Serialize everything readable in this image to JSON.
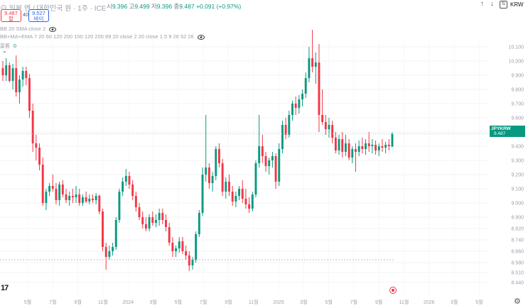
{
  "header": {
    "title": "일본 엔 / 대한민국 원 · 1주 · ICE",
    "open_label": "시",
    "open": "9.396",
    "high_label": "고",
    "high": "9.499",
    "low_label": "저",
    "low": "9.396",
    "close_label": "종",
    "close": "9.487",
    "change": "+0.091 (+0.97%)"
  },
  "trade": {
    "sell_price": "9.487",
    "sell_label": "팔",
    "spread": "40",
    "buy_price": "9.527",
    "buy_label": "바이"
  },
  "toolbar": {
    "currency": "KRW"
  },
  "indicators": {
    "line1": "BB 20 SMA close 2",
    "line2": "BB+MA+EMA 7 20 60 120 200 150 120 200 89 20 close 2 20 close 1.5 9 26 52 26",
    "line3_label": "볼륨",
    "line3_value": "0"
  },
  "price_tag": {
    "symbol": "JPYKRW",
    "price": "9.487",
    "countdown": "2d 19h"
  },
  "logo": "17",
  "chart_data": {
    "type": "candlestick",
    "title": "일본 엔 / 대한민국 원 · 1주 · ICE",
    "ylim": [
      8.42,
      10.18
    ],
    "y_ticks": [
      "10.100",
      "10.000",
      "9.900",
      "9.800",
      "9.700",
      "9.600",
      "9.500",
      "9.400",
      "9.300",
      "9.200",
      "9.100",
      "9.000",
      "8.900",
      "8.820",
      "8.740",
      "8.660",
      "8.580",
      "8.510",
      "8.440"
    ],
    "x_ticks": [
      "5월",
      "7월",
      "9월",
      "11월",
      "2024",
      "3월",
      "5월",
      "7월",
      "9월",
      "11월",
      "2025",
      "3월",
      "5월",
      "7월",
      "9월",
      "11월",
      "2026",
      "3월",
      "5월"
    ],
    "colors": {
      "up": "#089981",
      "down": "#f23645",
      "reference": "#f7a9b0",
      "current": "#9ed1c8"
    },
    "reference_price": 8.6,
    "current_price": 9.487,
    "candles": [
      [
        9.95,
        10.0,
        9.86,
        9.9
      ],
      [
        9.9,
        10.02,
        9.86,
        9.97
      ],
      [
        9.97,
        9.99,
        9.85,
        9.86
      ],
      [
        9.86,
        9.98,
        9.8,
        9.95
      ],
      [
        9.95,
        10.04,
        9.75,
        9.78
      ],
      [
        9.78,
        9.9,
        9.7,
        9.87
      ],
      [
        9.87,
        9.96,
        9.82,
        9.93
      ],
      [
        9.93,
        9.96,
        9.83,
        9.88
      ],
      [
        9.88,
        9.91,
        9.6,
        9.65
      ],
      [
        9.65,
        9.7,
        9.36,
        9.42
      ],
      [
        9.42,
        9.48,
        9.3,
        9.39
      ],
      [
        9.39,
        9.42,
        9.23,
        9.27
      ],
      [
        9.27,
        9.32,
        8.98,
        9.0
      ],
      [
        9.0,
        9.1,
        8.95,
        9.08
      ],
      [
        9.08,
        9.14,
        9.05,
        9.12
      ],
      [
        9.12,
        9.2,
        9.08,
        9.1
      ],
      [
        9.1,
        9.14,
        8.99,
        9.02
      ],
      [
        9.02,
        9.15,
        8.98,
        9.13
      ],
      [
        9.13,
        9.16,
        9.04,
        9.06
      ],
      [
        9.06,
        9.1,
        9.0,
        9.02
      ],
      [
        9.02,
        9.08,
        8.98,
        9.05
      ],
      [
        9.05,
        9.1,
        9.0,
        9.04
      ],
      [
        9.04,
        9.12,
        9.0,
        9.06
      ],
      [
        9.06,
        9.1,
        8.98,
        9.0
      ],
      [
        9.0,
        9.06,
        8.98,
        9.04
      ],
      [
        9.04,
        9.08,
        9.0,
        9.01
      ],
      [
        9.01,
        9.06,
        8.99,
        9.03
      ],
      [
        9.03,
        9.06,
        9.0,
        9.02
      ],
      [
        9.02,
        9.07,
        8.99,
        9.05
      ],
      [
        9.05,
        9.06,
        8.92,
        8.94
      ],
      [
        8.94,
        8.96,
        8.66,
        8.69
      ],
      [
        8.69,
        8.72,
        8.53,
        8.62
      ],
      [
        8.62,
        8.7,
        8.6,
        8.66
      ],
      [
        8.66,
        8.72,
        8.63,
        8.69
      ],
      [
        8.69,
        8.9,
        8.67,
        8.88
      ],
      [
        8.88,
        9.1,
        8.86,
        9.08
      ],
      [
        9.08,
        9.18,
        9.05,
        9.15
      ],
      [
        9.15,
        9.24,
        9.12,
        9.19
      ],
      [
        9.19,
        9.22,
        9.1,
        9.13
      ],
      [
        9.13,
        9.16,
        9.02,
        9.05
      ],
      [
        9.05,
        9.08,
        8.94,
        8.97
      ],
      [
        8.97,
        9.0,
        8.88,
        8.9
      ],
      [
        8.9,
        8.94,
        8.82,
        8.85
      ],
      [
        8.85,
        8.9,
        8.8,
        8.82
      ],
      [
        8.82,
        8.92,
        8.8,
        8.9
      ],
      [
        8.9,
        8.94,
        8.84,
        8.86
      ],
      [
        8.86,
        8.92,
        8.83,
        8.88
      ],
      [
        8.88,
        8.96,
        8.84,
        8.93
      ],
      [
        8.93,
        8.96,
        8.85,
        8.88
      ],
      [
        8.88,
        8.92,
        8.8,
        8.83
      ],
      [
        8.83,
        8.86,
        8.7,
        8.72
      ],
      [
        8.72,
        8.76,
        8.62,
        8.66
      ],
      [
        8.66,
        8.7,
        8.62,
        8.68
      ],
      [
        8.68,
        8.76,
        8.65,
        8.73
      ],
      [
        8.73,
        8.76,
        8.64,
        8.66
      ],
      [
        8.66,
        8.7,
        8.6,
        8.63
      ],
      [
        8.63,
        8.66,
        8.52,
        8.56
      ],
      [
        8.56,
        8.62,
        8.53,
        8.6
      ],
      [
        8.6,
        8.8,
        8.58,
        8.78
      ],
      [
        8.78,
        8.95,
        8.76,
        8.93
      ],
      [
        8.93,
        9.25,
        8.91,
        9.2
      ],
      [
        9.2,
        9.62,
        9.15,
        9.25
      ],
      [
        9.25,
        9.28,
        9.1,
        9.14
      ],
      [
        9.14,
        9.22,
        9.08,
        9.19
      ],
      [
        9.19,
        9.4,
        9.16,
        9.38
      ],
      [
        9.38,
        9.42,
        9.25,
        9.28
      ],
      [
        9.28,
        9.31,
        9.05,
        9.08
      ],
      [
        9.08,
        9.18,
        9.03,
        9.15
      ],
      [
        9.15,
        9.2,
        9.05,
        9.08
      ],
      [
        9.08,
        9.12,
        8.98,
        9.01
      ],
      [
        9.01,
        9.08,
        8.97,
        9.05
      ],
      [
        9.05,
        9.12,
        9.02,
        9.1
      ],
      [
        9.1,
        9.16,
        9.0,
        9.03
      ],
      [
        9.03,
        9.1,
        8.96,
        8.99
      ],
      [
        8.99,
        9.04,
        8.93,
        8.96
      ],
      [
        8.96,
        9.08,
        8.94,
        9.06
      ],
      [
        9.06,
        9.3,
        9.04,
        9.28
      ],
      [
        9.28,
        9.62,
        9.25,
        9.4
      ],
      [
        9.4,
        9.48,
        9.28,
        9.33
      ],
      [
        9.33,
        9.36,
        9.22,
        9.26
      ],
      [
        9.26,
        9.32,
        9.2,
        9.3
      ],
      [
        9.3,
        9.36,
        9.25,
        9.33
      ],
      [
        9.33,
        9.35,
        9.1,
        9.15
      ],
      [
        9.15,
        9.42,
        9.12,
        9.38
      ],
      [
        9.38,
        9.58,
        9.35,
        9.55
      ],
      [
        9.55,
        9.6,
        9.45,
        9.48
      ],
      [
        9.48,
        9.65,
        9.46,
        9.62
      ],
      [
        9.62,
        9.72,
        9.58,
        9.7
      ],
      [
        9.7,
        9.75,
        9.62,
        9.67
      ],
      [
        9.67,
        9.76,
        9.63,
        9.73
      ],
      [
        9.73,
        9.8,
        9.68,
        9.77
      ],
      [
        9.77,
        9.92,
        9.74,
        9.88
      ],
      [
        9.88,
        10.1,
        9.85,
        10.02
      ],
      [
        10.02,
        10.22,
        9.92,
        9.96
      ],
      [
        9.96,
        10.06,
        9.84,
        9.99
      ],
      [
        9.99,
        10.12,
        9.5,
        9.62
      ],
      [
        9.62,
        9.8,
        9.55,
        9.57
      ],
      [
        9.57,
        9.62,
        9.48,
        9.52
      ],
      [
        9.52,
        9.6,
        9.46,
        9.55
      ],
      [
        9.55,
        9.58,
        9.42,
        9.46
      ],
      [
        9.46,
        9.5,
        9.35,
        9.37
      ],
      [
        9.37,
        9.48,
        9.34,
        9.45
      ],
      [
        9.45,
        9.5,
        9.32,
        9.36
      ],
      [
        9.36,
        9.48,
        9.33,
        9.42
      ],
      [
        9.42,
        9.45,
        9.3,
        9.32
      ],
      [
        9.32,
        9.4,
        9.28,
        9.38
      ],
      [
        9.38,
        9.42,
        9.22,
        9.36
      ],
      [
        9.36,
        9.44,
        9.33,
        9.4
      ],
      [
        9.4,
        9.46,
        9.35,
        9.38
      ],
      [
        9.38,
        9.45,
        9.34,
        9.42
      ],
      [
        9.42,
        9.5,
        9.36,
        9.4
      ],
      [
        9.4,
        9.45,
        9.35,
        9.41
      ],
      [
        9.41,
        9.44,
        9.34,
        9.37
      ],
      [
        9.37,
        9.42,
        9.33,
        9.4
      ],
      [
        9.4,
        9.45,
        9.36,
        9.39
      ],
      [
        9.39,
        9.43,
        9.35,
        9.41
      ],
      [
        9.41,
        9.45,
        9.37,
        9.4
      ],
      [
        9.396,
        9.499,
        9.396,
        9.487
      ]
    ]
  }
}
